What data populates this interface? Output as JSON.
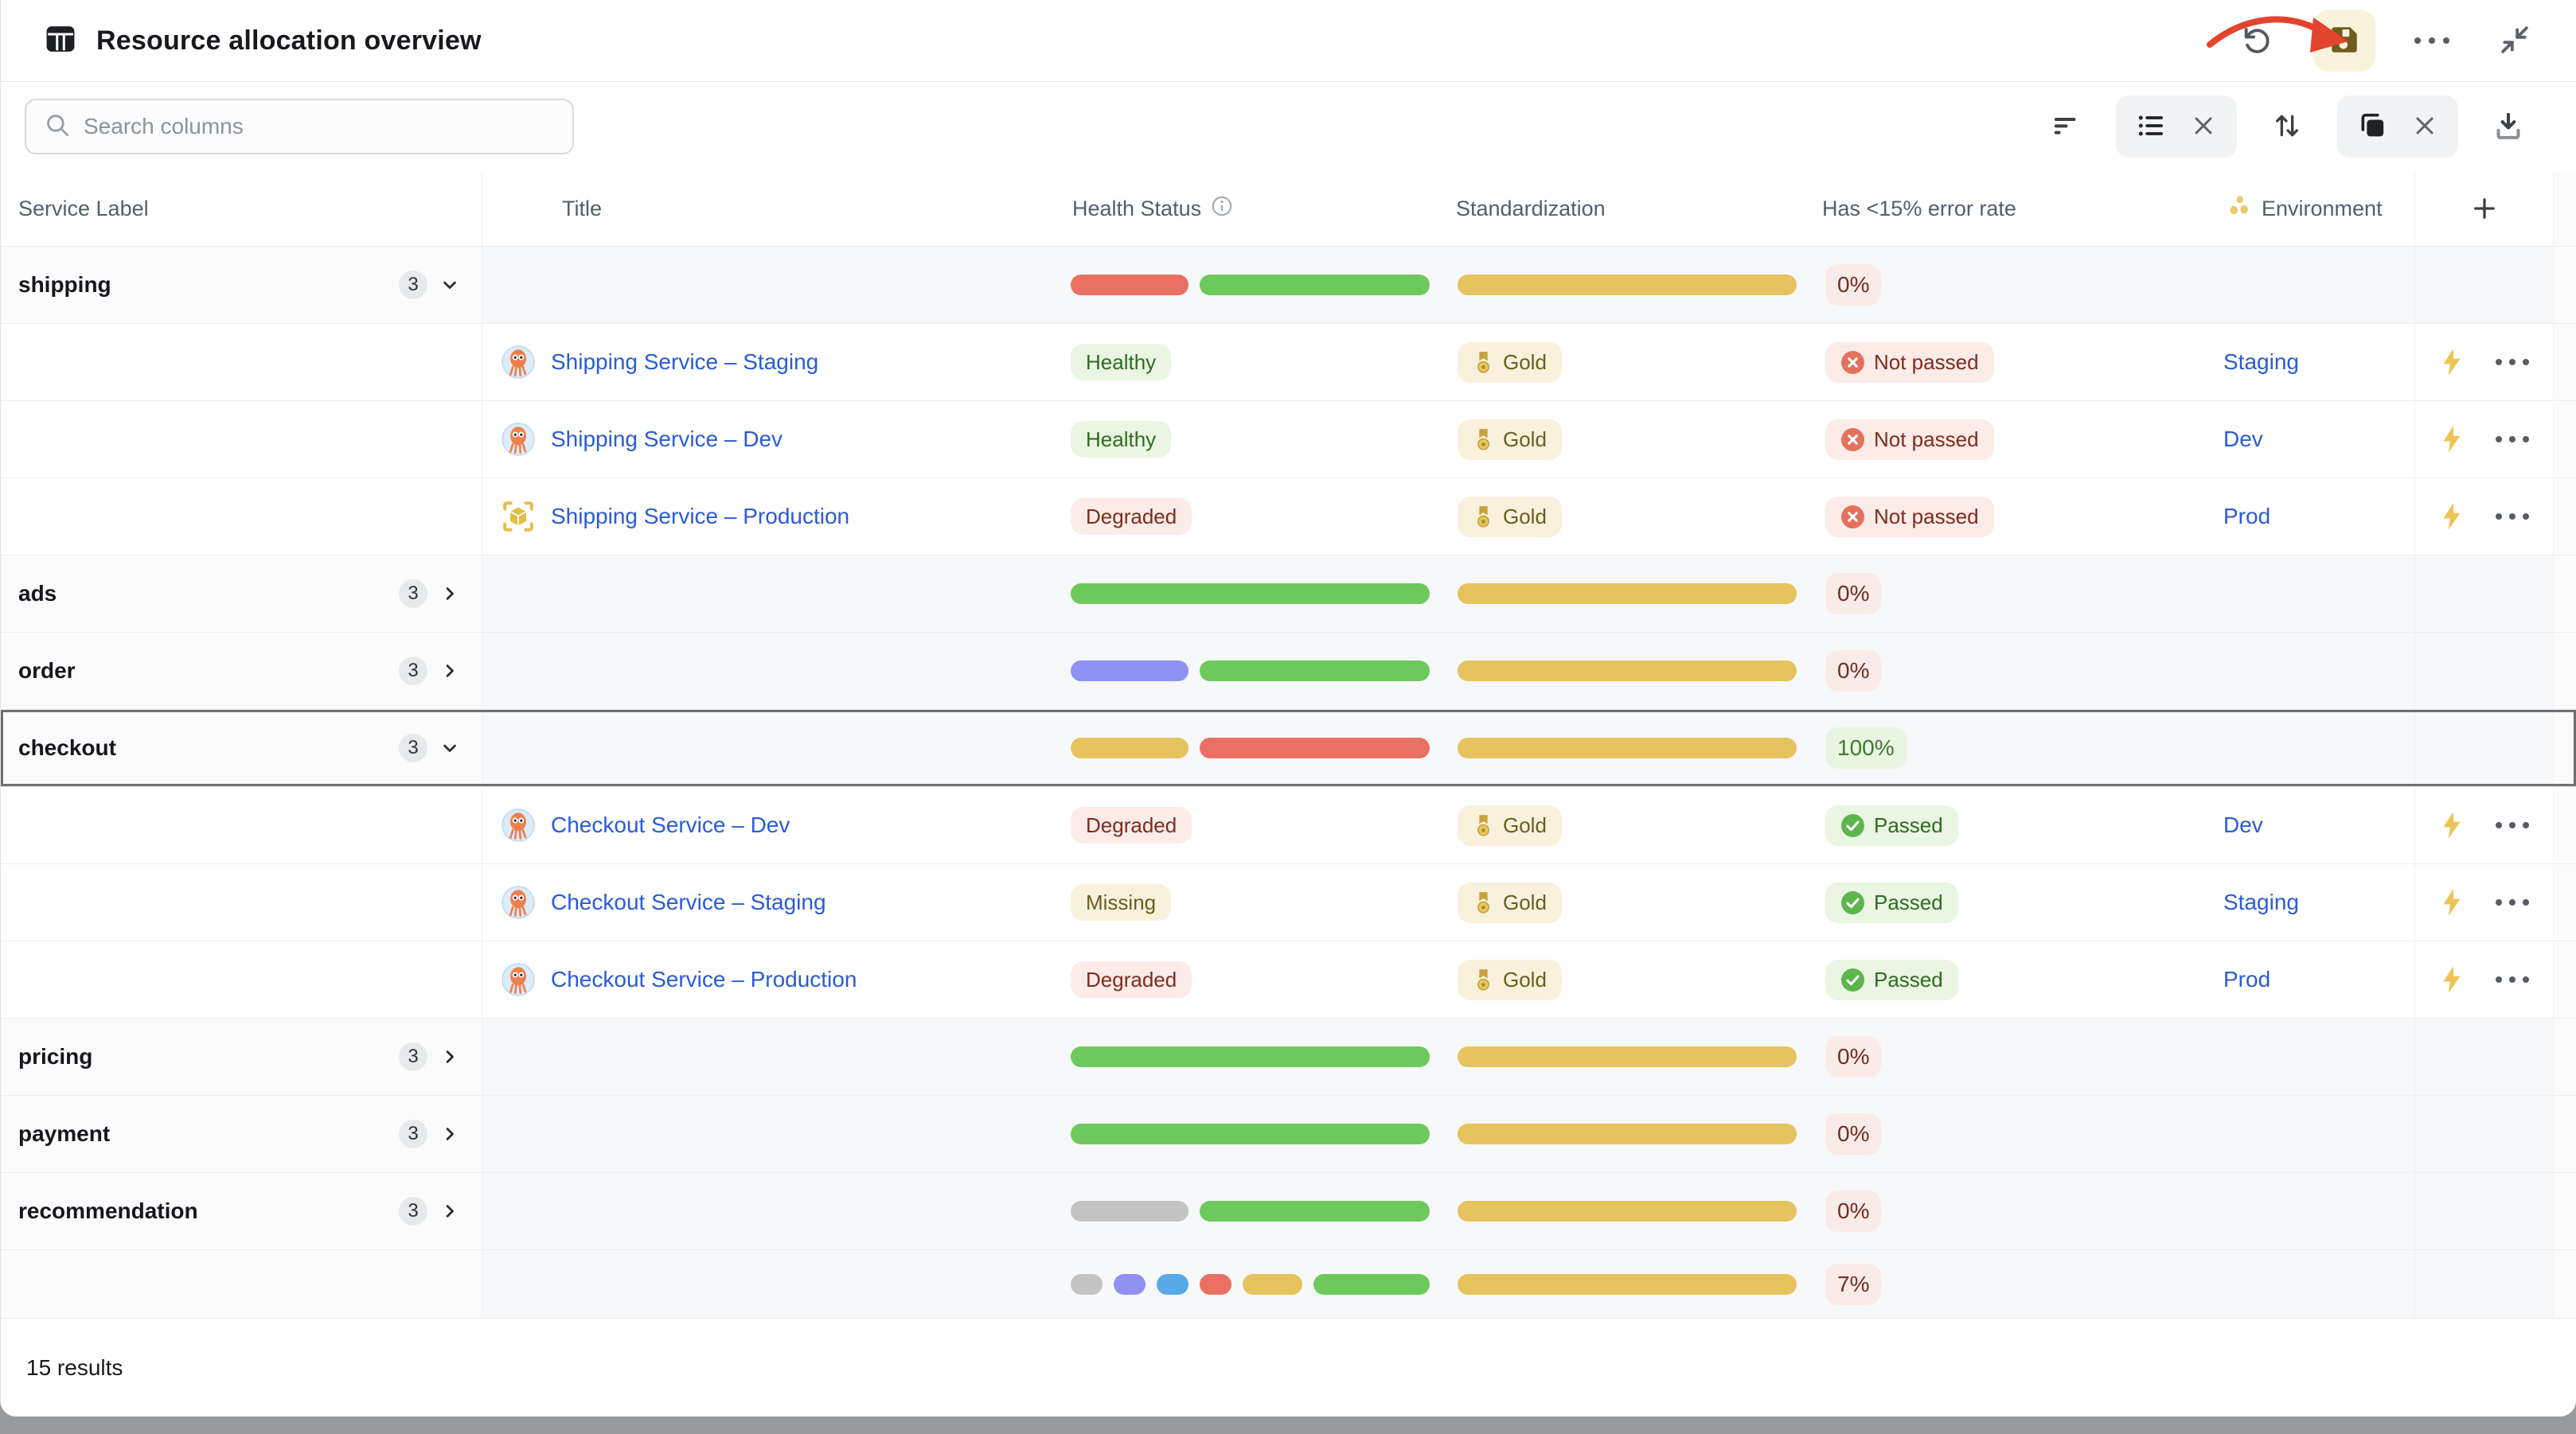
{
  "header": {
    "title": "Resource allocation overview",
    "actions": {
      "undo": "undo",
      "save": "save",
      "more": "more-options",
      "collapse": "collapse"
    }
  },
  "toolbar": {
    "search_placeholder": "Search columns",
    "icons": [
      "filter",
      "list-view",
      "clear-list",
      "sort",
      "copy-group",
      "clear-group",
      "download"
    ]
  },
  "columns": {
    "service": "Service Label",
    "title": "Title",
    "health": "Health Status",
    "std": "Standardization",
    "error": "Has <15% error rate",
    "env": "Environment",
    "add": "+"
  },
  "colors": {
    "bars": {
      "red": "#e97062",
      "green": "#6dc95c",
      "gold": "#e6c35e",
      "purple": "#8e90f2",
      "blue": "#58aae6",
      "gray": "#c4c4c4"
    },
    "link": "#2a5bd7",
    "save_button_bg": "#faf3dc",
    "save_icon": "#6f5d1f",
    "annotation_arrow": "#e2442e",
    "selected_row_outline": "#6f7073"
  },
  "rows": [
    {
      "kind": "group",
      "label": "shipping",
      "count": "3",
      "expanded": true,
      "health": [
        [
          "red",
          148
        ],
        [
          "green",
          289
        ]
      ],
      "std": [
        [
          "gold",
          426
        ]
      ],
      "pct": {
        "text": "0%",
        "tone": "pink"
      }
    },
    {
      "kind": "detail",
      "icon": "squid-icon",
      "title": "Shipping Service – Staging",
      "status": {
        "text": "Healthy",
        "tone": "green"
      },
      "std_badge": "Gold",
      "error": {
        "text": "Not passed",
        "tone": "red",
        "icon": "x"
      },
      "env": "Staging"
    },
    {
      "kind": "detail",
      "icon": "squid-icon",
      "title": "Shipping Service – Dev",
      "status": {
        "text": "Healthy",
        "tone": "green"
      },
      "std_badge": "Gold",
      "error": {
        "text": "Not passed",
        "tone": "red",
        "icon": "x"
      },
      "env": "Dev"
    },
    {
      "kind": "detail",
      "icon": "cube-icon",
      "title": "Shipping Service – Production",
      "status": {
        "text": "Degraded",
        "tone": "red"
      },
      "std_badge": "Gold",
      "error": {
        "text": "Not passed",
        "tone": "red",
        "icon": "x"
      },
      "env": "Prod"
    },
    {
      "kind": "group",
      "label": "ads",
      "count": "3",
      "expanded": false,
      "health": [
        [
          "green",
          451
        ]
      ],
      "std": [
        [
          "gold",
          426
        ]
      ],
      "pct": {
        "text": "0%",
        "tone": "pink"
      }
    },
    {
      "kind": "group",
      "label": "order",
      "count": "3",
      "expanded": false,
      "health": [
        [
          "purple",
          148
        ],
        [
          "green",
          289
        ]
      ],
      "std": [
        [
          "gold",
          426
        ]
      ],
      "pct": {
        "text": "0%",
        "tone": "pink"
      }
    },
    {
      "kind": "group",
      "label": "checkout",
      "count": "3",
      "expanded": true,
      "selected": true,
      "health": [
        [
          "gold",
          148
        ],
        [
          "red",
          289
        ]
      ],
      "std": [
        [
          "gold",
          426
        ]
      ],
      "pct": {
        "text": "100%",
        "tone": "green"
      }
    },
    {
      "kind": "detail",
      "icon": "squid-icon",
      "title": "Checkout Service – Dev",
      "status": {
        "text": "Degraded",
        "tone": "red"
      },
      "std_badge": "Gold",
      "error": {
        "text": "Passed",
        "tone": "green",
        "icon": "check"
      },
      "env": "Dev"
    },
    {
      "kind": "detail",
      "icon": "squid-icon",
      "title": "Checkout Service – Staging",
      "status": {
        "text": "Missing",
        "tone": "cream"
      },
      "std_badge": "Gold",
      "error": {
        "text": "Passed",
        "tone": "green",
        "icon": "check"
      },
      "env": "Staging"
    },
    {
      "kind": "detail",
      "icon": "squid-icon",
      "title": "Checkout Service – Production",
      "status": {
        "text": "Degraded",
        "tone": "red"
      },
      "std_badge": "Gold",
      "error": {
        "text": "Passed",
        "tone": "green",
        "icon": "check"
      },
      "env": "Prod"
    },
    {
      "kind": "group",
      "label": "pricing",
      "count": "3",
      "expanded": false,
      "health": [
        [
          "green",
          451
        ]
      ],
      "std": [
        [
          "gold",
          426
        ]
      ],
      "pct": {
        "text": "0%",
        "tone": "pink"
      }
    },
    {
      "kind": "group",
      "label": "payment",
      "count": "3",
      "expanded": false,
      "health": [
        [
          "green",
          451
        ]
      ],
      "std": [
        [
          "gold",
          426
        ]
      ],
      "pct": {
        "text": "0%",
        "tone": "pink"
      }
    },
    {
      "kind": "group",
      "label": "recommendation",
      "count": "3",
      "expanded": false,
      "health": [
        [
          "gray",
          148
        ],
        [
          "green",
          289
        ]
      ],
      "std": [
        [
          "gold",
          426
        ]
      ],
      "pct": {
        "text": "0%",
        "tone": "pink"
      }
    },
    {
      "kind": "group",
      "label": "",
      "partial": true,
      "health": [
        [
          "gray",
          40
        ],
        [
          "purple",
          40
        ],
        [
          "blue",
          40
        ],
        [
          "red",
          40
        ],
        [
          "gold",
          75
        ],
        [
          "green",
          146
        ]
      ],
      "std": [
        [
          "gold",
          426
        ]
      ],
      "pct": {
        "text": "7%",
        "tone": "pink"
      }
    }
  ],
  "footer": {
    "results": "15 results"
  }
}
